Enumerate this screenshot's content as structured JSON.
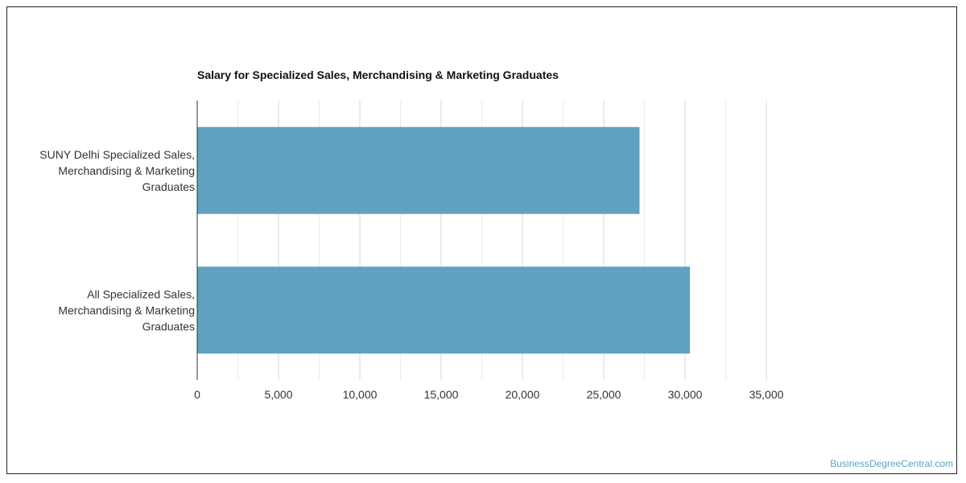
{
  "chart_data": {
    "type": "bar",
    "orientation": "horizontal",
    "title": "Salary for Specialized Sales, Merchandising & Marketing Graduates",
    "categories": [
      [
        "SUNY Delhi Specialized Sales,",
        "Merchandising & Marketing",
        "Graduates"
      ],
      [
        "All Specialized Sales,",
        "Merchandising & Marketing",
        "Graduates"
      ]
    ],
    "values": [
      27200,
      30300
    ],
    "xlim": [
      0,
      35000
    ],
    "x_ticks": [
      "0",
      "5,000",
      "10,000",
      "15,000",
      "20,000",
      "25,000",
      "30,000",
      "35,000"
    ],
    "grid": true,
    "bar_color": "#5fa3c0"
  },
  "watermark": "BusinessDegreeCentral.com"
}
